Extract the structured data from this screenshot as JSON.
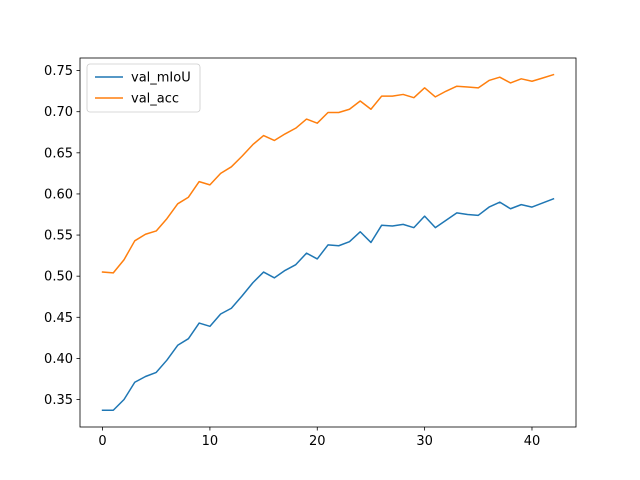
{
  "chart_data": {
    "type": "line",
    "x": [
      0,
      1,
      2,
      3,
      4,
      5,
      6,
      7,
      8,
      9,
      10,
      11,
      12,
      13,
      14,
      15,
      16,
      17,
      18,
      19,
      20,
      21,
      22,
      23,
      24,
      25,
      26,
      27,
      28,
      29,
      30,
      31,
      32,
      33,
      34,
      35,
      36,
      37,
      38,
      39,
      40,
      41,
      42
    ],
    "series": [
      {
        "name": "val_mIoU",
        "color": "#1f77b4",
        "values": [
          0.337,
          0.337,
          0.35,
          0.371,
          0.378,
          0.383,
          0.398,
          0.416,
          0.424,
          0.443,
          0.439,
          0.454,
          0.461,
          0.476,
          0.492,
          0.505,
          0.498,
          0.507,
          0.514,
          0.528,
          0.521,
          0.538,
          0.537,
          0.542,
          0.554,
          0.541,
          0.562,
          0.561,
          0.563,
          0.559,
          0.573,
          0.559,
          0.568,
          0.577,
          0.575,
          0.574,
          0.584,
          0.59,
          0.582,
          0.587,
          0.584,
          0.589,
          0.594
        ]
      },
      {
        "name": "val_acc",
        "color": "#ff7f0e",
        "values": [
          0.505,
          0.504,
          0.52,
          0.543,
          0.551,
          0.555,
          0.57,
          0.588,
          0.596,
          0.615,
          0.611,
          0.625,
          0.633,
          0.646,
          0.66,
          0.671,
          0.665,
          0.673,
          0.68,
          0.691,
          0.686,
          0.699,
          0.699,
          0.703,
          0.713,
          0.703,
          0.719,
          0.719,
          0.721,
          0.717,
          0.729,
          0.718,
          0.725,
          0.731,
          0.73,
          0.729,
          0.738,
          0.742,
          0.735,
          0.74,
          0.737,
          0.741,
          0.745
        ]
      }
    ],
    "xlim": [
      -2.1,
      44.1
    ],
    "ylim": [
      0.3166,
      0.7653
    ],
    "xticks": [
      0,
      10,
      20,
      30,
      40
    ],
    "xtick_labels": [
      "0",
      "10",
      "20",
      "30",
      "40"
    ],
    "yticks": [
      0.35,
      0.4,
      0.45,
      0.5,
      0.55,
      0.6,
      0.65,
      0.7,
      0.75
    ],
    "ytick_labels": [
      "0.35",
      "0.40",
      "0.45",
      "0.50",
      "0.55",
      "0.60",
      "0.65",
      "0.70",
      "0.75"
    ],
    "legend_position": "top-left",
    "grid": false
  }
}
